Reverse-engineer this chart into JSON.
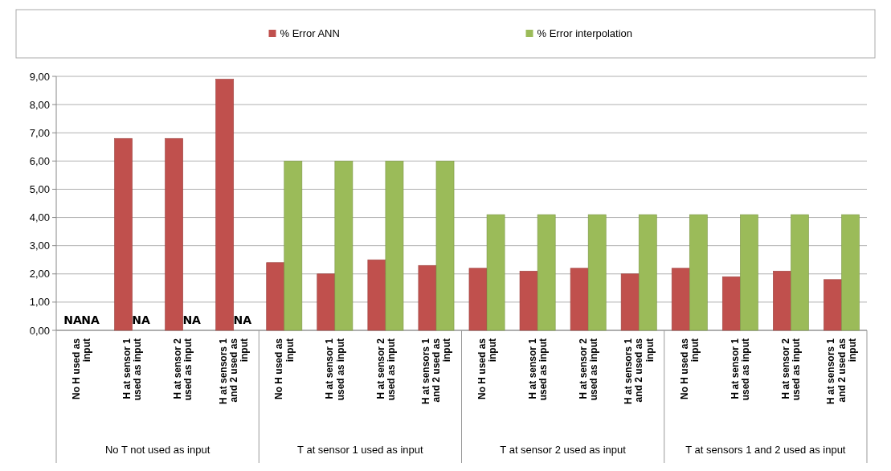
{
  "chart_data": {
    "type": "bar",
    "categories": [
      "No H used as input",
      "H at sensor 1 used as input",
      "H at sensor 2 used as input",
      "H at sensors 1 and 2 used as input",
      "No H used as input",
      "H at sensor 1 used as input",
      "H at sensor 2 used as input",
      "H at sensors 1 and 2 used as input",
      "No H used as input",
      "H at sensor 1 used as input",
      "H at sensor 2 used as input",
      "H at sensors 1 and 2 used as input",
      "No H used as input",
      "H at sensor 1 used as input",
      "H at sensor 2 used as input",
      "H at sensors 1 and 2 used as input"
    ],
    "series": [
      {
        "name": "% Error ANN",
        "color": "#c0504d",
        "values": [
          null,
          6.8,
          6.8,
          8.9,
          2.4,
          2.0,
          2.5,
          2.3,
          2.2,
          2.1,
          2.2,
          2.0,
          2.2,
          1.9,
          2.1,
          1.8
        ],
        "value_labels": [
          "NA",
          null,
          null,
          null,
          null,
          null,
          null,
          null,
          null,
          null,
          null,
          null,
          null,
          null,
          null,
          null
        ]
      },
      {
        "name": "% Error interpolation",
        "color": "#9bbb59",
        "values": [
          null,
          null,
          null,
          null,
          6.0,
          6.0,
          6.0,
          6.0,
          4.1,
          4.1,
          4.1,
          4.1,
          4.1,
          4.1,
          4.1,
          4.1
        ],
        "value_labels": [
          "NA",
          "NA",
          "NA",
          "NA",
          null,
          null,
          null,
          null,
          null,
          null,
          null,
          null,
          null,
          null,
          null,
          null
        ]
      }
    ],
    "annotations": [
      "No T not used as input",
      "T at sensor 1 used as input",
      "T at sensor 2 used as input",
      "T at sensors 1 and 2 used as input"
    ],
    "ylim": [
      0,
      9
    ],
    "yticks": [
      {
        "value": 0,
        "label": "0,00"
      },
      {
        "value": 1,
        "label": "1,00"
      },
      {
        "value": 2,
        "label": "2,00"
      },
      {
        "value": 3,
        "label": "3,00"
      },
      {
        "value": 4,
        "label": "4,00"
      },
      {
        "value": 5,
        "label": "5,00"
      },
      {
        "value": 6,
        "label": "6,00"
      },
      {
        "value": 7,
        "label": "7,00"
      },
      {
        "value": 8,
        "label": "8,00"
      },
      {
        "value": 9,
        "label": "9,00"
      }
    ],
    "grid": true,
    "legend": "top"
  }
}
